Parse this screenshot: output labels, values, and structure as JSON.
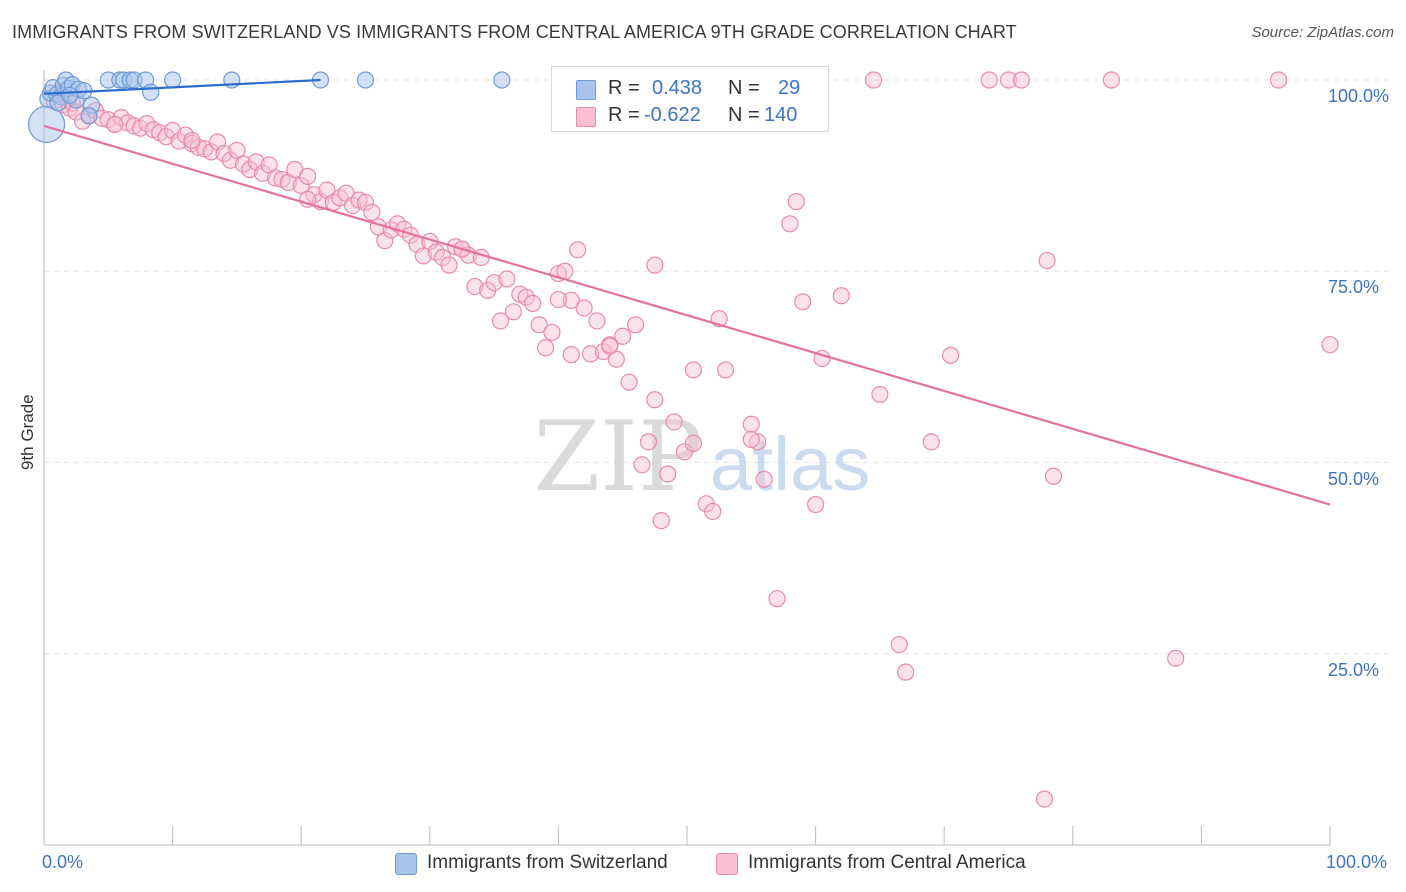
{
  "title": "IMMIGRANTS FROM SWITZERLAND VS IMMIGRANTS FROM CENTRAL AMERICA 9TH GRADE CORRELATION CHART",
  "source": "Source: ZipAtlas.com",
  "watermark": {
    "zip": "ZIP",
    "atlas": "atlas"
  },
  "legend": {
    "rows": [
      {
        "r_label": "R =",
        "r_value": "0.438",
        "n_label": "N =",
        "n_value": "29",
        "color": "#a9c4ec",
        "border": "#6f9ad8"
      },
      {
        "r_label": "R =",
        "r_value": "-0.622",
        "n_label": "N =",
        "n_value": "140",
        "color": "#f7bfd0",
        "border": "#e98aa8"
      }
    ]
  },
  "bottom_legend": [
    {
      "label": "Immigrants from Switzerland",
      "color": "#a9c4ec",
      "border": "#6f9ad8"
    },
    {
      "label": "Immigrants from Central America",
      "color": "#f7bfd0",
      "border": "#e98aa8"
    }
  ],
  "colors": {
    "blue": "#3d73c5",
    "blue_line": "#2a6fd0",
    "pink": "#e87da1",
    "pink_line": "#e4729b",
    "grid": "#e3e3e3"
  },
  "chart_data": {
    "type": "scatter",
    "title": "IMMIGRANTS FROM SWITZERLAND VS IMMIGRANTS FROM CENTRAL AMERICA 9TH GRADE CORRELATION CHART",
    "xlabel": "",
    "ylabel": "9th Grade",
    "xlim": [
      0,
      100
    ],
    "ylim": [
      0,
      103
    ],
    "x_tick_labels": [
      "0.0%",
      "100.0%"
    ],
    "y_ticks": [
      25,
      50,
      75,
      100
    ],
    "y_tick_labels": [
      "25.0%",
      "50.0%",
      "75.0%",
      "100.0%"
    ],
    "grid": true,
    "series": [
      {
        "name": "Immigrants from Switzerland",
        "color": "#a9c4ec",
        "points": [
          [
            0.2,
            94.2
          ],
          [
            0.3,
            97.5
          ],
          [
            0.5,
            98.3
          ],
          [
            0.7,
            99.0
          ],
          [
            1.0,
            98.1
          ],
          [
            1.3,
            97.8
          ],
          [
            1.5,
            99.3
          ],
          [
            1.7,
            100.0
          ],
          [
            1.9,
            98.9
          ],
          [
            2.2,
            99.4
          ],
          [
            2.5,
            97.4
          ],
          [
            2.7,
            98.8
          ],
          [
            3.1,
            98.6
          ],
          [
            3.7,
            96.7
          ],
          [
            3.5,
            95.3
          ],
          [
            5.0,
            100.0
          ],
          [
            5.9,
            100.0
          ],
          [
            6.2,
            100.0
          ],
          [
            6.7,
            100.0
          ],
          [
            7.0,
            100.0
          ],
          [
            7.9,
            100.0
          ],
          [
            8.3,
            98.4
          ],
          [
            10.0,
            100.0
          ],
          [
            14.6,
            100.0
          ],
          [
            21.5,
            100.0
          ],
          [
            25.0,
            100.0
          ],
          [
            35.6,
            100.0
          ],
          [
            1.1,
            97.0
          ],
          [
            2.0,
            98.0
          ]
        ],
        "trend": {
          "x": [
            0,
            21.5
          ],
          "y": [
            98.2,
            100.0
          ]
        }
      },
      {
        "name": "Immigrants from Central America",
        "color": "#f7bfd0",
        "points": [
          [
            0.8,
            97.2
          ],
          [
            1.2,
            98.5
          ],
          [
            1.5,
            96.8
          ],
          [
            1.8,
            97.6
          ],
          [
            2.0,
            96.3
          ],
          [
            2.2,
            97.0
          ],
          [
            2.5,
            95.8
          ],
          [
            3.0,
            94.6
          ],
          [
            3.5,
            95.4
          ],
          [
            4.0,
            96.0
          ],
          [
            4.5,
            95.0
          ],
          [
            5.0,
            94.8
          ],
          [
            5.5,
            94.2
          ],
          [
            6.0,
            95.1
          ],
          [
            6.5,
            94.4
          ],
          [
            7.0,
            94.0
          ],
          [
            7.5,
            93.7
          ],
          [
            8.0,
            94.3
          ],
          [
            8.5,
            93.5
          ],
          [
            9.0,
            93.1
          ],
          [
            9.5,
            92.6
          ],
          [
            10.0,
            93.4
          ],
          [
            10.5,
            92.0
          ],
          [
            11.0,
            92.8
          ],
          [
            11.5,
            91.7
          ],
          [
            12.0,
            91.2
          ],
          [
            12.5,
            91.0
          ],
          [
            13.0,
            90.6
          ],
          [
            13.5,
            91.9
          ],
          [
            14.0,
            90.4
          ],
          [
            14.5,
            89.5
          ],
          [
            15.0,
            90.8
          ],
          [
            15.5,
            89.0
          ],
          [
            16.0,
            88.3
          ],
          [
            16.5,
            89.3
          ],
          [
            17.0,
            87.8
          ],
          [
            17.5,
            88.9
          ],
          [
            18.0,
            87.2
          ],
          [
            18.5,
            87.0
          ],
          [
            19.0,
            86.6
          ],
          [
            19.5,
            88.3
          ],
          [
            20.0,
            86.2
          ],
          [
            20.5,
            87.4
          ],
          [
            21.0,
            85.0
          ],
          [
            21.5,
            84.1
          ],
          [
            22.0,
            85.6
          ],
          [
            22.5,
            84.0
          ],
          [
            23.0,
            84.6
          ],
          [
            23.5,
            85.2
          ],
          [
            24.0,
            83.6
          ],
          [
            24.5,
            84.3
          ],
          [
            25.0,
            84.0
          ],
          [
            25.5,
            82.7
          ],
          [
            26.0,
            80.8
          ],
          [
            26.5,
            79.0
          ],
          [
            27.0,
            80.4
          ],
          [
            27.5,
            81.2
          ],
          [
            28.0,
            80.5
          ],
          [
            28.5,
            79.7
          ],
          [
            29.0,
            78.5
          ],
          [
            29.5,
            77.0
          ],
          [
            30.0,
            78.9
          ],
          [
            30.5,
            77.5
          ],
          [
            31.0,
            76.8
          ],
          [
            31.5,
            75.8
          ],
          [
            32.0,
            78.2
          ],
          [
            32.5,
            77.9
          ],
          [
            33.0,
            77.1
          ],
          [
            33.5,
            73.0
          ],
          [
            34.0,
            76.8
          ],
          [
            34.5,
            72.5
          ],
          [
            35.0,
            73.5
          ],
          [
            35.5,
            68.5
          ],
          [
            36.0,
            74.0
          ],
          [
            36.5,
            69.7
          ],
          [
            37.0,
            72.0
          ],
          [
            37.5,
            71.6
          ],
          [
            38.0,
            70.8
          ],
          [
            38.5,
            68.0
          ],
          [
            39.0,
            65.0
          ],
          [
            39.5,
            67.0
          ],
          [
            40.0,
            74.7
          ],
          [
            40.5,
            75.0
          ],
          [
            41.0,
            71.2
          ],
          [
            41.5,
            77.8
          ],
          [
            42.0,
            70.2
          ],
          [
            42.5,
            64.2
          ],
          [
            43.0,
            68.5
          ],
          [
            43.5,
            64.5
          ],
          [
            44.0,
            65.4
          ],
          [
            44.5,
            63.5
          ],
          [
            45.0,
            66.5
          ],
          [
            45.5,
            60.5
          ],
          [
            46.0,
            68.0
          ],
          [
            46.5,
            49.7
          ],
          [
            47.0,
            52.7
          ],
          [
            47.5,
            58.2
          ],
          [
            48.0,
            42.4
          ],
          [
            48.5,
            48.5
          ],
          [
            49.0,
            55.3
          ],
          [
            49.8,
            51.4
          ],
          [
            50.5,
            52.5
          ],
          [
            51.5,
            44.6
          ],
          [
            52.0,
            43.6
          ],
          [
            53.0,
            62.1
          ],
          [
            55.0,
            55.0
          ],
          [
            55.5,
            52.7
          ],
          [
            56.0,
            47.8
          ],
          [
            57.0,
            32.2
          ],
          [
            58.0,
            81.2
          ],
          [
            58.5,
            84.1
          ],
          [
            59.0,
            71.0
          ],
          [
            60.0,
            44.5
          ],
          [
            60.5,
            63.6
          ],
          [
            62.0,
            71.8
          ],
          [
            66.5,
            26.2
          ],
          [
            67.0,
            22.6
          ],
          [
            69.0,
            52.7
          ],
          [
            70.5,
            64.0
          ],
          [
            73.5,
            100.0
          ],
          [
            75.0,
            100.0
          ],
          [
            76.0,
            100.0
          ],
          [
            78.0,
            76.4
          ],
          [
            78.5,
            48.2
          ],
          [
            77.8,
            6.0
          ],
          [
            83.0,
            100.0
          ],
          [
            88.0,
            24.4
          ],
          [
            96.0,
            100.0
          ],
          [
            100.0,
            65.4
          ],
          [
            52.5,
            68.8
          ],
          [
            47.5,
            75.8
          ],
          [
            32.5,
            77.9
          ],
          [
            41.0,
            64.1
          ],
          [
            55.0,
            53.0
          ],
          [
            40.0,
            71.3
          ],
          [
            20.5,
            84.4
          ],
          [
            11.5,
            92.1
          ],
          [
            5.5,
            94.2
          ],
          [
            65.0,
            58.9
          ],
          [
            44.0,
            65.2
          ],
          [
            50.5,
            62.1
          ],
          [
            64.5,
            100.0
          ]
        ],
        "trend": {
          "x": [
            0,
            100
          ],
          "y": [
            94.0,
            44.5
          ]
        }
      }
    ]
  }
}
